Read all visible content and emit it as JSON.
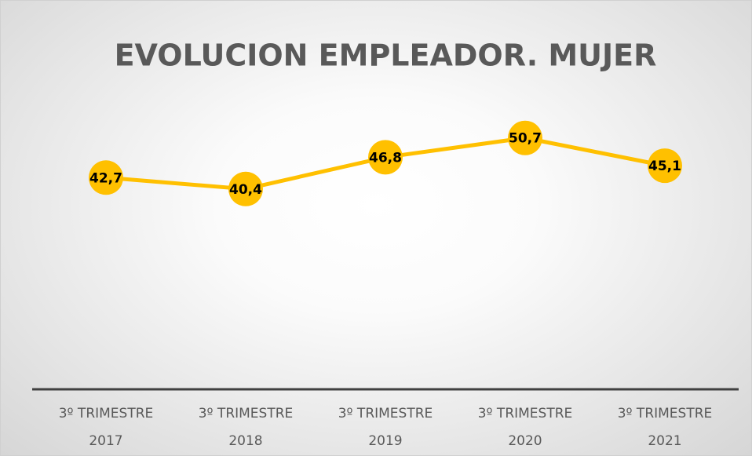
{
  "chart_data": {
    "type": "line",
    "title": "EVOLUCION EMPLEADOR. MUJER",
    "categories": [
      "3º TRIMESTRE 2017",
      "3º TRIMESTRE 2018",
      "3º TRIMESTRE 2019",
      "3º TRIMESTRE 2020",
      "3º TRIMESTRE 2021"
    ],
    "series": [
      {
        "name": "Mujer",
        "color": "#ffc000",
        "values": [
          42.7,
          40.4,
          46.8,
          50.7,
          45.1
        ],
        "value_labels": [
          "42,7",
          "40,4",
          "46,8",
          "50,7",
          "45,1"
        ]
      }
    ],
    "ylim": [
      0,
      60
    ]
  }
}
